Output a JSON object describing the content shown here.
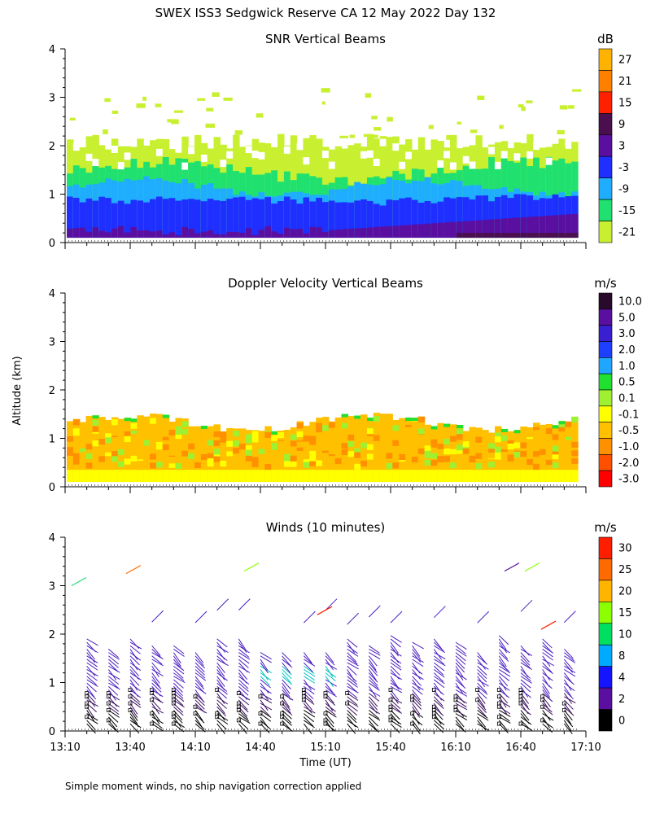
{
  "title": "SWEX ISS3 Sedgwick Reserve CA  12 May 2022 Day 132",
  "ylabel": "Altitude (km)",
  "xlabel": "Time (UT)",
  "footnote": "Simple moment winds, no ship navigation correction applied",
  "chart_data": [
    {
      "type": "heatmap",
      "title": "SNR Vertical Beams",
      "unit": "dB",
      "ylim": [
        0,
        4
      ],
      "y_ticks": [
        "0",
        "1",
        "2",
        "3",
        "4"
      ],
      "x_range": [
        "13:10",
        "17:10"
      ],
      "colorbar": {
        "labels": [
          "27",
          "21",
          "15",
          "9",
          "3",
          "-3",
          "-9",
          "-15",
          "-21"
        ],
        "colors": [
          "#ffb300",
          "#ff8000",
          "#ff2000",
          "#4b0f4f",
          "#5a0fa0",
          "#1f2fff",
          "#1faeff",
          "#20e070",
          "#c8f030"
        ]
      },
      "layers": [
        {
          "band": "scattered weak echo",
          "color": "#c8f030",
          "top_km": 2.1
        },
        {
          "band": "green layer",
          "color": "#20e070",
          "top_km": 1.5
        },
        {
          "band": "cyan layer",
          "color": "#1faeff",
          "top_km": 1.25
        },
        {
          "band": "blue layer",
          "color": "#1f2fff",
          "top_km": 0.9
        },
        {
          "band": "purple layer",
          "color": "#5a0fa0",
          "top_km": 0.55
        }
      ]
    },
    {
      "type": "heatmap",
      "title": "Doppler Velocity Vertical Beams",
      "unit": "m/s",
      "ylim": [
        0,
        4
      ],
      "y_ticks": [
        "0",
        "1",
        "2",
        "3",
        "4"
      ],
      "x_range": [
        "13:10",
        "17:10"
      ],
      "colorbar": {
        "labels": [
          "10.0",
          "5.0",
          "3.0",
          "2.0",
          "1.0",
          "0.5",
          "0.1",
          "-0.1",
          "-0.5",
          "-1.0",
          "-2.0",
          "-3.0"
        ],
        "colors": [
          "#2a0a2a",
          "#5a0fa0",
          "#3a1fd0",
          "#1f3fff",
          "#1fa6ff",
          "#20e030",
          "#9ff030",
          "#ffff00",
          "#ffc000",
          "#ff9000",
          "#ff5000",
          "#ff0000"
        ]
      },
      "echo_top_km": 1.4
    },
    {
      "type": "wind_barbs",
      "title": "Winds (10 minutes)",
      "unit": "m/s",
      "ylim": [
        0,
        4
      ],
      "y_ticks": [
        "0",
        "1",
        "2",
        "3",
        "4"
      ],
      "x_ticks": [
        "13:10",
        "13:40",
        "14:10",
        "14:40",
        "15:10",
        "15:40",
        "16:10",
        "16:40",
        "17:10"
      ],
      "colorbar": {
        "labels": [
          "30",
          "25",
          "20",
          "15",
          "10",
          "8",
          "4",
          "2",
          "0"
        ],
        "colors": [
          "#ff1e00",
          "#ff6a00",
          "#ffb400",
          "#8cff00",
          "#00e060",
          "#00aaff",
          "#1414ff",
          "#5a0fa0",
          "#000000"
        ]
      },
      "profile_times": [
        "13:20",
        "13:30",
        "13:40",
        "13:50",
        "14:00",
        "14:10",
        "14:20",
        "14:30",
        "14:40",
        "14:50",
        "15:00",
        "15:10",
        "15:20",
        "15:30",
        "15:40",
        "15:50",
        "16:00",
        "16:10",
        "16:20",
        "16:30",
        "16:40",
        "16:50",
        "17:00"
      ]
    }
  ]
}
